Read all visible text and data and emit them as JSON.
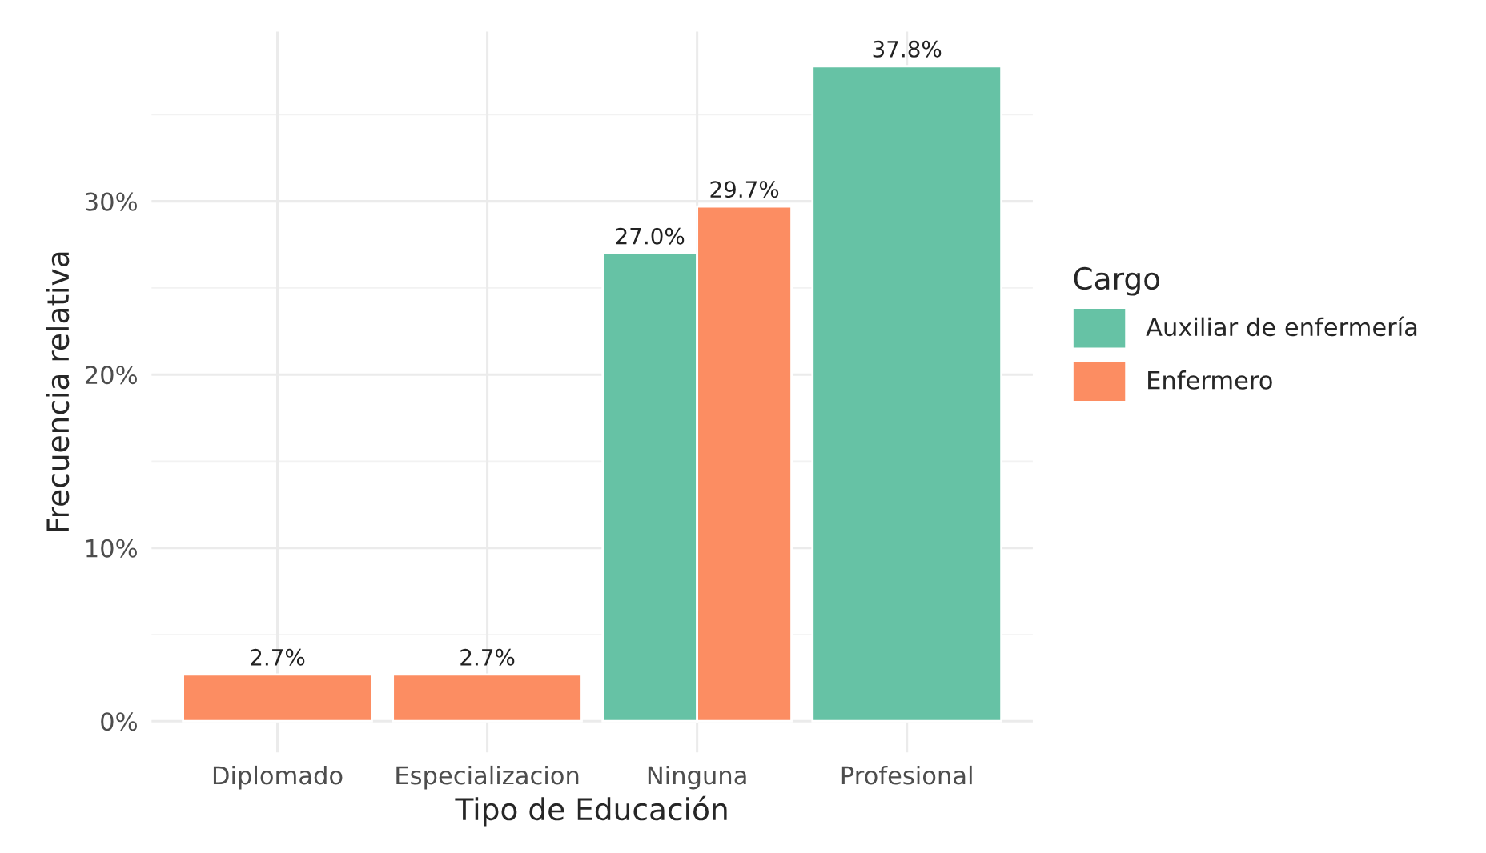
{
  "chart_data": {
    "type": "bar",
    "xlabel": "Tipo de Educación",
    "ylabel": "Frecuencia relativa",
    "legend_title": "Cargo",
    "categories": [
      "Diplomado",
      "Especializacion",
      "Ninguna",
      "Profesional"
    ],
    "series": [
      {
        "name": "Auxiliar de enfermería",
        "color": "#66c2a5",
        "values": [
          null,
          null,
          27.0,
          37.8
        ],
        "value_labels": [
          null,
          null,
          "27.0%",
          "37.8%"
        ]
      },
      {
        "name": "Enfermero",
        "color": "#fc8d62",
        "values": [
          2.7,
          2.7,
          29.7,
          null
        ],
        "value_labels": [
          "2.7%",
          "2.7%",
          "29.7%",
          null
        ]
      }
    ],
    "ylim": [
      -1.8,
      39.8
    ],
    "yticks": [
      {
        "value": 0,
        "label": "0%"
      },
      {
        "value": 10,
        "label": "10%"
      },
      {
        "value": 20,
        "label": "20%"
      },
      {
        "value": 30,
        "label": "30%"
      }
    ],
    "grid": true,
    "legend": "right"
  }
}
